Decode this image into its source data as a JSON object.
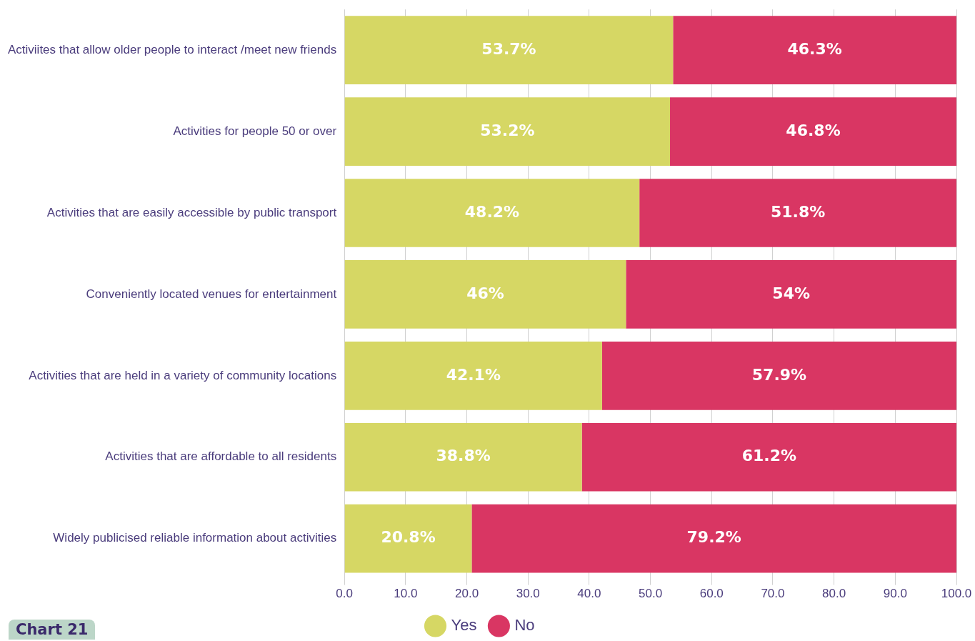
{
  "chart_data": {
    "type": "bar",
    "orientation": "horizontal",
    "stacked": true,
    "categories": [
      "Activiites that allow older people to interact /meet new friends",
      "Activities for people 50 or over",
      "Activities that are easily accessible by public transport",
      "Conveniently located venues for entertainment",
      "Activities that are held in a variety of community locations",
      "Activities that are affordable to all residents",
      "Widely publicised reliable information about activities"
    ],
    "series": [
      {
        "name": "Yes",
        "color": "#d6d764",
        "values": [
          53.7,
          53.2,
          48.2,
          46,
          42.1,
          38.8,
          20.8
        ],
        "value_labels": [
          "53.7%",
          "53.2%",
          "48.2%",
          "46%",
          "42.1%",
          "38.8%",
          "20.8%"
        ]
      },
      {
        "name": "No",
        "color": "#d93663",
        "values": [
          46.3,
          46.8,
          51.8,
          54,
          57.9,
          61.2,
          79.2
        ],
        "value_labels": [
          "46.3%",
          "46.8%",
          "51.8%",
          "54%",
          "57.9%",
          "61.2%",
          "79.2%"
        ]
      }
    ],
    "xlim": [
      0,
      100
    ],
    "xticks": [
      {
        "value": 0,
        "label": "0.0"
      },
      {
        "value": 10,
        "label": "10.0"
      },
      {
        "value": 20,
        "label": "20.0"
      },
      {
        "value": 30,
        "label": "30.0"
      },
      {
        "value": 40,
        "label": "40.0"
      },
      {
        "value": 50,
        "label": "50.0"
      },
      {
        "value": 60,
        "label": "60.0"
      },
      {
        "value": 70,
        "label": "70.0"
      },
      {
        "value": 80,
        "label": "80.0"
      },
      {
        "value": 90,
        "label": "90.0"
      },
      {
        "value": 100,
        "label": "100.0"
      }
    ],
    "grid": "x",
    "legend": "bottom",
    "marker": "circle",
    "annotations": [
      "Chart 21"
    ]
  }
}
